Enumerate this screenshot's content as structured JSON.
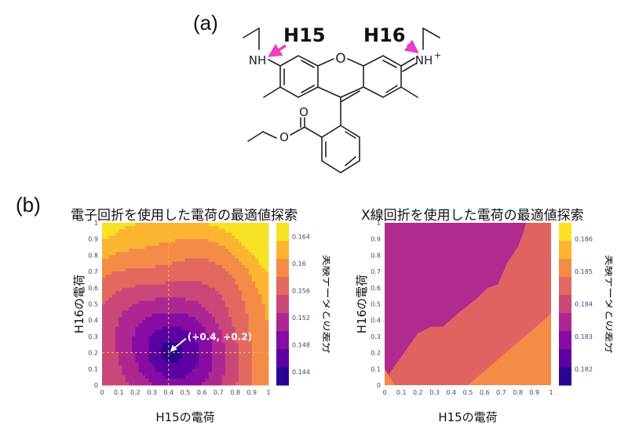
{
  "panel_a": {
    "label": "(a)",
    "h15": "H15",
    "h16": "H16",
    "nh_left": "NH",
    "nh_right": "NH",
    "plus": "+",
    "o_atom": "O",
    "o_ester1": "O",
    "o_ester2": "O",
    "arrow_color": "#e83fc4"
  },
  "panel_b": {
    "label": "(b)"
  },
  "chart_data": [
    {
      "type": "heatmap",
      "title": "電子回折を使用した電荷の最適値探索",
      "xlabel": "H15の電荷",
      "ylabel": "H16の電荷",
      "xlim": [
        0,
        1
      ],
      "ylim": [
        0,
        1
      ],
      "xticks": [
        "0",
        "0.1",
        "0.2",
        "0.3",
        "0.4",
        "0.5",
        "0.6",
        "0.7",
        "0.8",
        "0.9",
        "1"
      ],
      "yticks": [
        "0",
        "0.1",
        "0.2",
        "0.3",
        "0.4",
        "0.5",
        "0.6",
        "0.7",
        "0.8",
        "0.9",
        "1"
      ],
      "colorbar": {
        "label": "実験データとの差分",
        "ticks": [
          "0.144",
          "0.148",
          "0.152",
          "0.156",
          "0.16",
          "0.164"
        ],
        "range": [
          0.142,
          0.166
        ]
      },
      "optimum": {
        "x": 0.4,
        "y": 0.2,
        "label": "(+0.4, +0.2)"
      },
      "colorscale": [
        "#0d0887",
        "#46039f",
        "#7201a8",
        "#9c179e",
        "#bd3786",
        "#d8576b",
        "#ed7953",
        "#fb9f3a",
        "#fdca26",
        "#f0f921"
      ]
    },
    {
      "type": "heatmap",
      "title": "X線回折を使用した電荷の最適値探索",
      "xlabel": "H15の電荷",
      "ylabel": "H16の電荷",
      "xlim": [
        0,
        1
      ],
      "ylim": [
        0,
        1
      ],
      "xticks": [
        "0",
        "0.1",
        "0.2",
        "0.3",
        "0.4",
        "0.5",
        "0.6",
        "0.7",
        "0.8",
        "0.9",
        "1"
      ],
      "yticks": [
        "0",
        "0.1",
        "0.2",
        "0.3",
        "0.4",
        "0.5",
        "0.6",
        "0.7",
        "0.8",
        "0.9",
        "1"
      ],
      "colorbar": {
        "label": "実験データとの差分",
        "ticks": [
          "0.182",
          "0.183",
          "0.184",
          "0.185",
          "0.186"
        ],
        "range": [
          0.1815,
          0.1865
        ]
      },
      "colorscale": [
        "#0d0887",
        "#46039f",
        "#7201a8",
        "#9c179e",
        "#bd3786",
        "#d8576b",
        "#ed7953",
        "#fb9f3a",
        "#fdca26",
        "#f0f921"
      ]
    }
  ]
}
